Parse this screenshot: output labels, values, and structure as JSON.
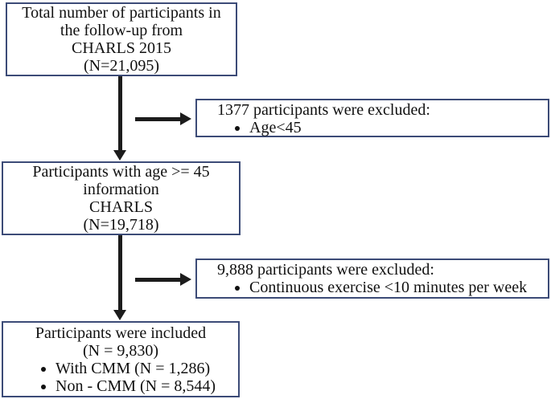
{
  "figure": {
    "type": "flowchart",
    "colors": {
      "box_border": "#3c4b77",
      "arrow": "#1c1c1c",
      "text": "#111111",
      "background": "#ffffff"
    },
    "boxes": {
      "total": {
        "lines": [
          "Total number of participants in",
          "the follow-up from",
          "CHARLS 2015",
          "(N=21,095)"
        ]
      },
      "excluded_age": {
        "title": "1377 participants were excluded:",
        "bullets": [
          "Age<45"
        ]
      },
      "age_filtered": {
        "lines": [
          "Participants with age >= 45",
          "information",
          "CHARLS",
          "(N=19,718)"
        ]
      },
      "excluded_exercise": {
        "title": "9,888 participants were excluded:",
        "bullets": [
          "Continuous exercise <10 minutes per week"
        ]
      },
      "included": {
        "lines": [
          "Participants were included",
          "(N = 9,830)"
        ],
        "bullets": [
          "With CMM (N = 1,286)",
          "Non - CMM (N = 8,544)"
        ]
      }
    }
  }
}
